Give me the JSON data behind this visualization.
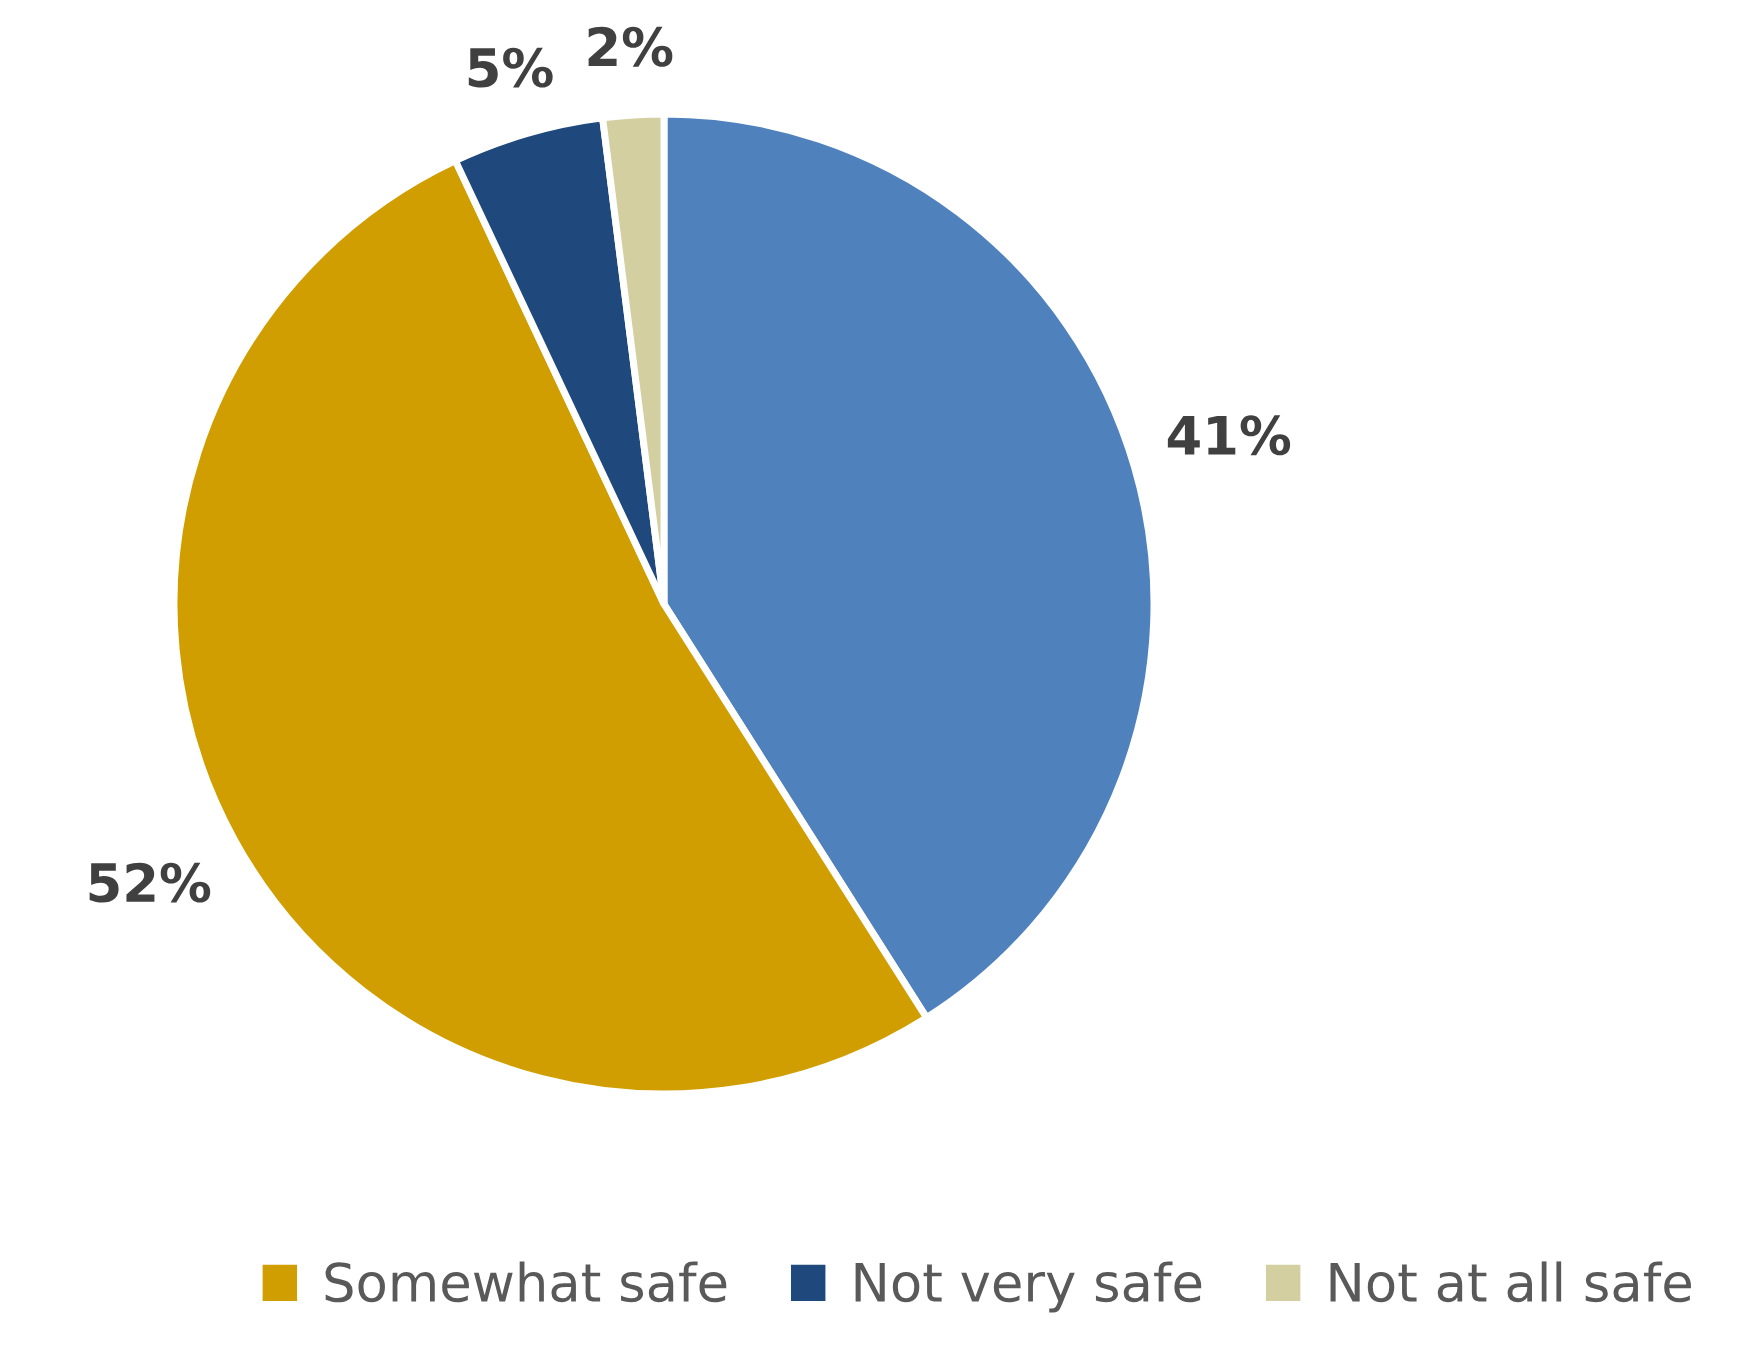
{
  "chart_data": {
    "type": "pie",
    "categories": [
      null,
      "Somewhat safe",
      "Not very safe",
      "Not at all safe"
    ],
    "values": [
      41,
      52,
      5,
      2
    ],
    "colors": [
      "#4f81bd",
      "#d09e00",
      "#1f497d",
      "#d4cfa0"
    ],
    "value_labels": [
      "41%",
      "52%",
      "5%",
      "2%"
    ],
    "legend": "bottom"
  }
}
